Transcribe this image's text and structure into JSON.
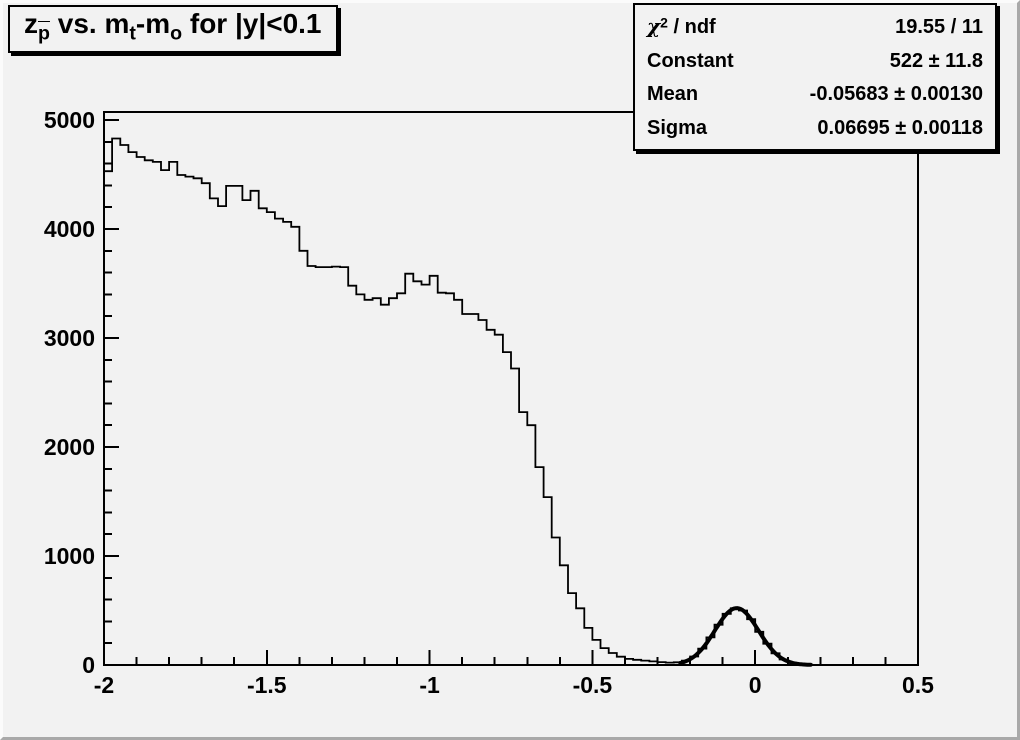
{
  "canvas": {
    "background": "#f2f2f2",
    "bevel_light": "#fbfbfb",
    "bevel_dark": "#a9a9a9",
    "line_color": "#000000"
  },
  "title_box": {
    "z": "z",
    "p_sub": "p",
    "mid1": " vs. m",
    "t_sub": "t",
    "mid2": "-m",
    "o_sub": "o",
    "tail": " for |y|<0.1"
  },
  "stats_box": {
    "rows": [
      {
        "label_main": "χ",
        "label_sup": "2",
        "label_rest": " / ndf",
        "value": "19.55 / 11"
      },
      {
        "label_main": "Constant",
        "value": "522 ± 11.8"
      },
      {
        "label_main": "Mean",
        "value": "-0.05683 ± 0.00130"
      },
      {
        "label_main": "Sigma",
        "value": "0.06695 ± 0.00118"
      }
    ]
  },
  "chart_data": {
    "type": "bar",
    "subtype": "step-histogram",
    "title": "z_pbar vs. m_t-m_o for |y|<0.1",
    "xlabel": "",
    "ylabel": "",
    "xlim": [
      -2.0,
      0.5
    ],
    "ylim": [
      0,
      5073
    ],
    "grid": false,
    "x_ticks": [
      -2,
      -1.5,
      -1,
      -0.5,
      0,
      0.5
    ],
    "x_tick_labels": [
      "-2",
      "-1.5",
      "-1",
      "-0.5",
      "0",
      "0.5"
    ],
    "x_minor_step": 0.1,
    "y_ticks": [
      0,
      1000,
      2000,
      3000,
      4000,
      5000
    ],
    "y_tick_labels": [
      "0",
      "1000",
      "2000",
      "3000",
      "4000",
      "5000"
    ],
    "y_minor_step": 200,
    "bin_start": -2.0,
    "bin_width": 0.025,
    "counts": [
      4530,
      4830,
      4770,
      4705,
      4660,
      4630,
      4615,
      4540,
      4615,
      4495,
      4480,
      4465,
      4420,
      4280,
      4210,
      4395,
      4395,
      4265,
      4350,
      4190,
      4155,
      4095,
      4065,
      4020,
      3800,
      3660,
      3650,
      3650,
      3655,
      3650,
      3480,
      3400,
      3350,
      3365,
      3305,
      3365,
      3410,
      3590,
      3520,
      3490,
      3570,
      3415,
      3410,
      3350,
      3220,
      3220,
      3165,
      3075,
      3030,
      2870,
      2720,
      2320,
      2200,
      1815,
      1540,
      1170,
      915,
      660,
      520,
      340,
      230,
      155,
      110,
      76,
      56,
      48,
      40,
      33,
      27,
      22,
      25,
      40,
      78,
      150,
      253,
      370,
      470,
      520,
      500,
      420,
      305,
      195,
      107,
      50,
      22,
      8,
      3,
      1,
      0,
      0,
      0,
      0,
      0,
      0,
      0,
      0,
      0,
      0,
      0,
      0
    ],
    "fit": {
      "type": "gaussian",
      "constant": 522,
      "mean": -0.05683,
      "sigma": 0.06695,
      "range": [
        -0.23,
        0.17
      ]
    },
    "stats": {
      "chi2_ndf": "19.55 / 11",
      "constant": "522 ± 11.8",
      "mean": "-0.05683 ± 0.00130",
      "sigma": "0.06695 ± 0.00118"
    }
  }
}
